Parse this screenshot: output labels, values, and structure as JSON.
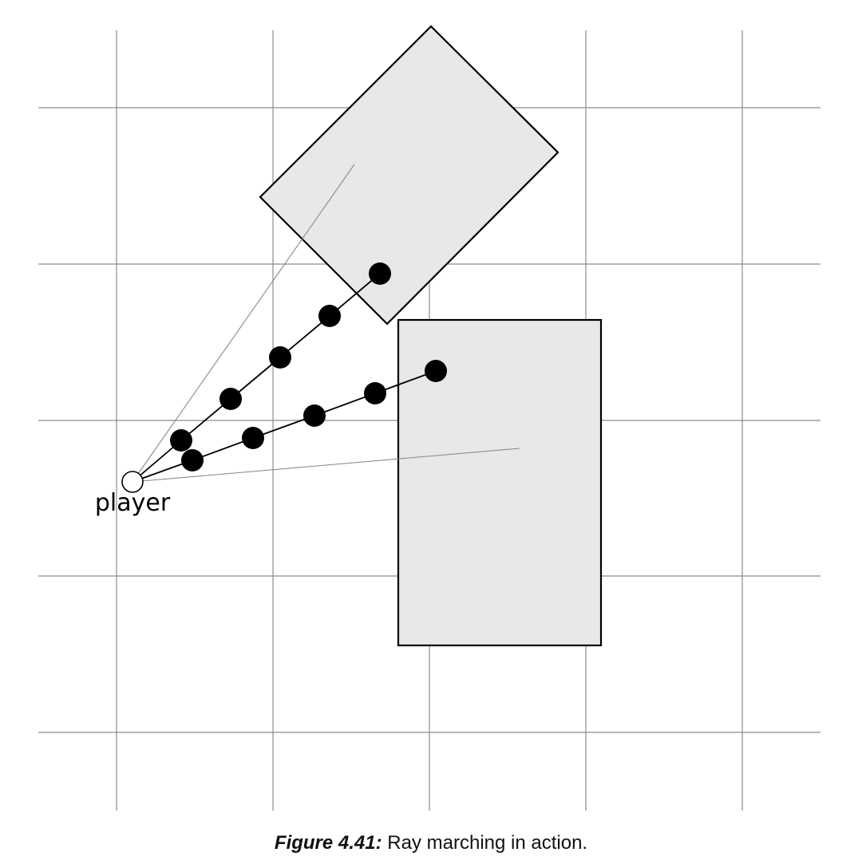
{
  "diagram": {
    "player_label": "player",
    "objects": [
      {
        "name": "rotated-box"
      },
      {
        "name": "rect-box"
      }
    ]
  },
  "caption": {
    "label": "Figure 4.41:",
    "text": "Ray marching in action."
  }
}
